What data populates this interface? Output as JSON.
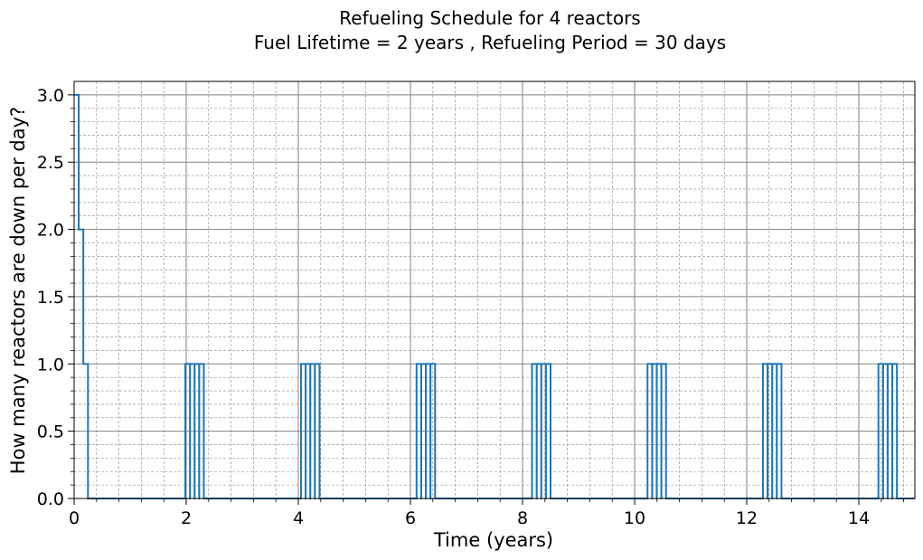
{
  "chart_data": {
    "type": "line",
    "title_lines": [
      "Refueling Schedule for 4 reactors",
      "Fuel Lifetime = 2 years , Refueling Period = 30 days"
    ],
    "xlabel": "Time (years)",
    "ylabel": "How many reactors are down per day?",
    "xlim": [
      0,
      15
    ],
    "ylim": [
      0,
      3.1
    ],
    "xticks": [
      0,
      2,
      4,
      6,
      8,
      10,
      12,
      14
    ],
    "xtick_labels": [
      "0",
      "2",
      "4",
      "6",
      "8",
      "10",
      "12",
      "14"
    ],
    "yticks": [
      0,
      0.5,
      1.0,
      1.5,
      2.0,
      2.5,
      3.0
    ],
    "ytick_labels": [
      "0.0",
      "0.5",
      "1.0",
      "1.5",
      "2.0",
      "2.5",
      "3.0"
    ],
    "grid": {
      "major": true,
      "minor": true
    },
    "line_color": "#1f77b4",
    "series": [
      {
        "step_points": [
          [
            0.0,
            3.0
          ],
          [
            0.082,
            3.0
          ],
          [
            0.082,
            2.0
          ],
          [
            0.164,
            2.0
          ],
          [
            0.164,
            1.0
          ],
          [
            0.247,
            1.0
          ],
          [
            0.247,
            0.0
          ],
          [
            1.984,
            0.0
          ],
          [
            1.984,
            1.0
          ],
          [
            2.066,
            1.0
          ],
          [
            2.066,
            0.0
          ],
          [
            2.068,
            0.0
          ],
          [
            2.068,
            1.0
          ],
          [
            2.148,
            1.0
          ],
          [
            2.148,
            0.0
          ],
          [
            2.15,
            0.0
          ],
          [
            2.15,
            1.0
          ],
          [
            2.23,
            1.0
          ],
          [
            2.23,
            0.0
          ],
          [
            2.232,
            0.0
          ],
          [
            2.232,
            1.0
          ],
          [
            2.314,
            1.0
          ],
          [
            2.314,
            0.0
          ],
          [
            4.048,
            0.0
          ],
          [
            4.048,
            1.0
          ],
          [
            4.13,
            1.0
          ],
          [
            4.13,
            0.0
          ],
          [
            4.132,
            0.0
          ],
          [
            4.132,
            1.0
          ],
          [
            4.212,
            1.0
          ],
          [
            4.212,
            0.0
          ],
          [
            4.214,
            0.0
          ],
          [
            4.214,
            1.0
          ],
          [
            4.294,
            1.0
          ],
          [
            4.294,
            0.0
          ],
          [
            4.296,
            0.0
          ],
          [
            4.296,
            1.0
          ],
          [
            4.378,
            1.0
          ],
          [
            4.378,
            0.0
          ],
          [
            6.11,
            0.0
          ],
          [
            6.11,
            1.0
          ],
          [
            6.192,
            1.0
          ],
          [
            6.192,
            0.0
          ],
          [
            6.194,
            0.0
          ],
          [
            6.194,
            1.0
          ],
          [
            6.274,
            1.0
          ],
          [
            6.274,
            0.0
          ],
          [
            6.276,
            0.0
          ],
          [
            6.276,
            1.0
          ],
          [
            6.356,
            1.0
          ],
          [
            6.356,
            0.0
          ],
          [
            6.358,
            0.0
          ],
          [
            6.358,
            1.0
          ],
          [
            6.44,
            1.0
          ],
          [
            6.44,
            0.0
          ],
          [
            8.17,
            0.0
          ],
          [
            8.17,
            1.0
          ],
          [
            8.252,
            1.0
          ],
          [
            8.252,
            0.0
          ],
          [
            8.254,
            0.0
          ],
          [
            8.254,
            1.0
          ],
          [
            8.334,
            1.0
          ],
          [
            8.334,
            0.0
          ],
          [
            8.336,
            0.0
          ],
          [
            8.336,
            1.0
          ],
          [
            8.416,
            1.0
          ],
          [
            8.416,
            0.0
          ],
          [
            8.418,
            0.0
          ],
          [
            8.418,
            1.0
          ],
          [
            8.5,
            1.0
          ],
          [
            8.5,
            0.0
          ],
          [
            10.23,
            0.0
          ],
          [
            10.23,
            1.0
          ],
          [
            10.312,
            1.0
          ],
          [
            10.312,
            0.0
          ],
          [
            10.314,
            0.0
          ],
          [
            10.314,
            1.0
          ],
          [
            10.394,
            1.0
          ],
          [
            10.394,
            0.0
          ],
          [
            10.396,
            0.0
          ],
          [
            10.396,
            1.0
          ],
          [
            10.476,
            1.0
          ],
          [
            10.476,
            0.0
          ],
          [
            10.478,
            0.0
          ],
          [
            10.478,
            1.0
          ],
          [
            10.56,
            1.0
          ],
          [
            10.56,
            0.0
          ],
          [
            12.29,
            0.0
          ],
          [
            12.29,
            1.0
          ],
          [
            12.372,
            1.0
          ],
          [
            12.372,
            0.0
          ],
          [
            12.374,
            0.0
          ],
          [
            12.374,
            1.0
          ],
          [
            12.454,
            1.0
          ],
          [
            12.454,
            0.0
          ],
          [
            12.456,
            0.0
          ],
          [
            12.456,
            1.0
          ],
          [
            12.536,
            1.0
          ],
          [
            12.536,
            0.0
          ],
          [
            12.538,
            0.0
          ],
          [
            12.538,
            1.0
          ],
          [
            12.62,
            1.0
          ],
          [
            12.62,
            0.0
          ],
          [
            14.35,
            0.0
          ],
          [
            14.35,
            1.0
          ],
          [
            14.432,
            1.0
          ],
          [
            14.432,
            0.0
          ],
          [
            14.434,
            0.0
          ],
          [
            14.434,
            1.0
          ],
          [
            14.514,
            1.0
          ],
          [
            14.514,
            0.0
          ],
          [
            14.516,
            0.0
          ],
          [
            14.516,
            1.0
          ],
          [
            14.596,
            1.0
          ],
          [
            14.596,
            0.0
          ],
          [
            14.598,
            0.0
          ],
          [
            14.598,
            1.0
          ],
          [
            14.68,
            1.0
          ],
          [
            14.68,
            0.0
          ],
          [
            15.0,
            0.0
          ]
        ]
      }
    ]
  }
}
